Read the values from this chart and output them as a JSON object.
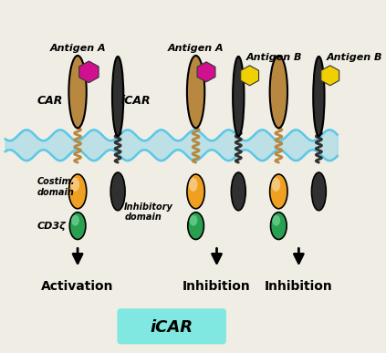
{
  "bg_color": "#f0ede4",
  "membrane_color": "#5bc8e8",
  "car_color": "#b88840",
  "icar_color": "#303030",
  "costim_color": "#f0a020",
  "cd3z_color": "#28a050",
  "antigen_a_color": "#d01090",
  "antigen_b_color": "#f0d000",
  "title": "iCAR",
  "title_bg": "#80e8e0",
  "label_activation": "Activation",
  "label_inhibition1": "Inhibition",
  "label_inhibition2": "Inhibition",
  "label_car": "CAR",
  "label_icar": "iCAR",
  "label_costim": "Costim.\ndomain",
  "label_cd3z": "CD3ζ",
  "label_inhibitory": "Inhibitory\ndomain",
  "label_antigen_a1": "Antigen A",
  "label_antigen_a2": "Antigen A",
  "label_antigen_b1": "Antigen B",
  "label_antigen_b2": "Antigen B"
}
